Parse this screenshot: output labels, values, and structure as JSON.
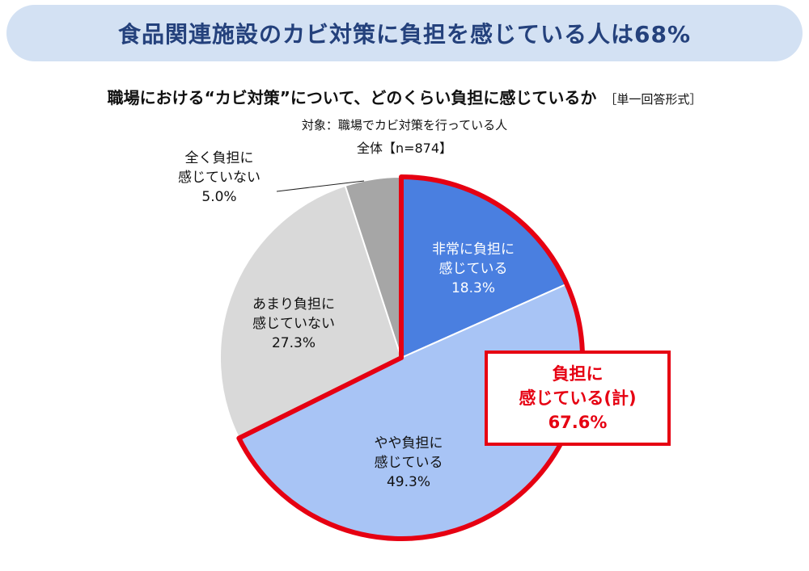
{
  "banner": {
    "title": "食品関連施設のカビ対策に負担を感じている人は68%"
  },
  "question": {
    "text": "職場における“カビ対策”について、どのくらい負担に感じているか",
    "format": "［単一回答形式］"
  },
  "target_text": "対象：職場でカビ対策を行っている人",
  "total_text": "全体【n=874】",
  "summary": {
    "line1": "負担に",
    "line2": "感じている(計)",
    "value": "67.6%"
  },
  "colors": {
    "very": "#4a7fe0",
    "somewhat": "#a8c4f5",
    "not_much": "#d9d9d9",
    "not_at_all": "#a6a6a6",
    "highlight": "#e60012",
    "banner_bg": "#d3e1f3",
    "banner_text": "#24417c"
  },
  "chart_data": {
    "type": "pie",
    "title": "職場における“カビ対策”について、どのくらい負担に感じているか",
    "slices": [
      {
        "line1": "非常に負担に",
        "line2": "感じている",
        "value": 18.3,
        "value_label": "18.3%",
        "color": "#4a7fe0"
      },
      {
        "line1": "やや負担に",
        "line2": "感じている",
        "value": 49.3,
        "value_label": "49.3%",
        "color": "#a8c4f5"
      },
      {
        "line1": "あまり負担に",
        "line2": "感じていない",
        "value": 27.3,
        "value_label": "27.3%",
        "color": "#d9d9d9"
      },
      {
        "line1": "全く負担に",
        "line2": "感じていない",
        "value": 5.0,
        "value_label": "5.0%",
        "color": "#a6a6a6"
      }
    ],
    "highlighted_total": {
      "value": 67.6,
      "covers": [
        0,
        1
      ]
    }
  }
}
